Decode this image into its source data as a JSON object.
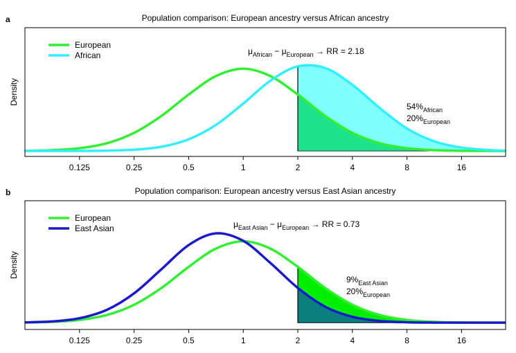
{
  "chart_data": [
    {
      "type": "density",
      "panel": "a",
      "title": "Population comparison: European ancestry versus African ancestry",
      "ylabel": "Density",
      "log_scale": true,
      "xlim": [
        0.0625,
        28
      ],
      "ylim": [
        -0.023,
        0.52
      ],
      "xticks": [
        0.125,
        0.25,
        0.5,
        1,
        2,
        4,
        8,
        16
      ],
      "threshold": 2,
      "x": [
        0.0625,
        0.088,
        0.125,
        0.177,
        0.25,
        0.354,
        0.5,
        0.707,
        1,
        1.41,
        2,
        2.83,
        4,
        5.66,
        8,
        11.3,
        16,
        22.6,
        28
      ],
      "series": [
        {
          "name": "European",
          "color": "#33ee33",
          "fill": "#1ee38a",
          "values": [
            0.0008,
            0.0034,
            0.0116,
            0.0327,
            0.0765,
            0.148,
            0.238,
            0.316,
            0.347,
            0.316,
            0.238,
            0.148,
            0.0765,
            0.0327,
            0.0116,
            0.0034,
            0.0008,
            0.0002,
            0.0001
          ]
        },
        {
          "name": "African",
          "color": "#33eeff",
          "fill": "#80ffff",
          "values": [
            0,
            4e-05,
            0.0002,
            0.0013,
            0.0053,
            0.0179,
            0.0491,
            0.11,
            0.2,
            0.296,
            0.357,
            0.35,
            0.279,
            0.181,
            0.095,
            0.0408,
            0.0142,
            0.004,
            0.0017
          ]
        }
      ],
      "annotation": [
        "μ",
        "African",
        " − ",
        "μ",
        "European",
        " → RR = 2.18"
      ],
      "percent_labels": [
        [
          "54%",
          "African"
        ],
        [
          "20%",
          "European"
        ]
      ]
    },
    {
      "type": "density",
      "panel": "b",
      "title": "Population comparison: European ancestry versus East Asian ancestry",
      "ylabel": "Density",
      "log_scale": true,
      "xlim": [
        0.0625,
        28
      ],
      "ylim": [
        -0.029,
        0.52
      ],
      "xticks": [
        0.125,
        0.25,
        0.5,
        1,
        2,
        4,
        8,
        16
      ],
      "threshold": 2,
      "x": [
        0.0625,
        0.088,
        0.125,
        0.177,
        0.25,
        0.354,
        0.5,
        0.707,
        1,
        1.41,
        2,
        2.83,
        4,
        5.66,
        8,
        11.3,
        16,
        22.6,
        28
      ],
      "series": [
        {
          "name": "European",
          "color": "#33ee33",
          "fill": "#00ee00",
          "values": [
            0.0008,
            0.0034,
            0.0116,
            0.0327,
            0.0765,
            0.148,
            0.238,
            0.316,
            0.347,
            0.316,
            0.238,
            0.148,
            0.0765,
            0.0327,
            0.0116,
            0.0034,
            0.0008,
            0.0002,
            0.0001
          ]
        },
        {
          "name": "East Asian",
          "color": "#1a1acc",
          "fill": "#0b7f7f",
          "values": [
            0.0012,
            0.0052,
            0.019,
            0.0547,
            0.125,
            0.228,
            0.331,
            0.381,
            0.349,
            0.255,
            0.148,
            0.068,
            0.025,
            0.0073,
            0.0017,
            0.0003,
            0.0001,
            0,
            0
          ]
        }
      ],
      "annotation": [
        "μ",
        "East Asian",
        " − ",
        "μ",
        "European",
        " → RR = 0.73"
      ],
      "percent_labels": [
        [
          "9%",
          "East Asian"
        ],
        [
          "20%",
          "European"
        ]
      ]
    }
  ]
}
